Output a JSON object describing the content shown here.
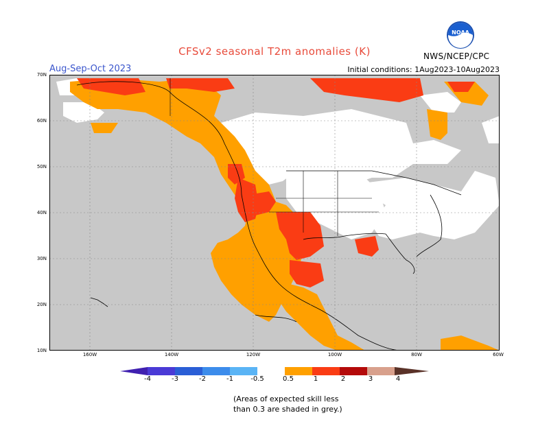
{
  "title": "CFSv2 seasonal T2m anomalies (K)",
  "period": "Aug-Sep-Oct 2023",
  "initial_conditions": "Initial conditions: 1Aug2023-10Aug2023",
  "agency": "NWS/NCEP/CPC",
  "logo_text": "NOAA",
  "colors": {
    "land_grey": "#c8c8c8",
    "neutral": "#ffffff",
    "orange": "#ffa000",
    "red_orange": "#fa3c14",
    "dark_red": "#b40a0a",
    "brown_pink": "#d8a08c",
    "dark_brown": "#5a3228",
    "blue_dark": "#4020b0",
    "blue_mid": "#2a5ed6",
    "blue_light": "#3c8ceb",
    "blue_lighter": "#5ab4f5"
  },
  "lat_labels": [
    "70N",
    "60N",
    "50N",
    "40N",
    "30N",
    "20N",
    "10N"
  ],
  "lon_labels": [
    "160W",
    "140W",
    "120W",
    "100W",
    "80W",
    "60W"
  ],
  "colorbar": {
    "labels": [
      "-4",
      "-3",
      "-2",
      "-1",
      "-0.5",
      "0.5",
      "1",
      "2",
      "3",
      "4"
    ]
  },
  "note_lines": [
    "(Areas of expected skill less",
    "than 0.3 are shaded in grey.)"
  ]
}
